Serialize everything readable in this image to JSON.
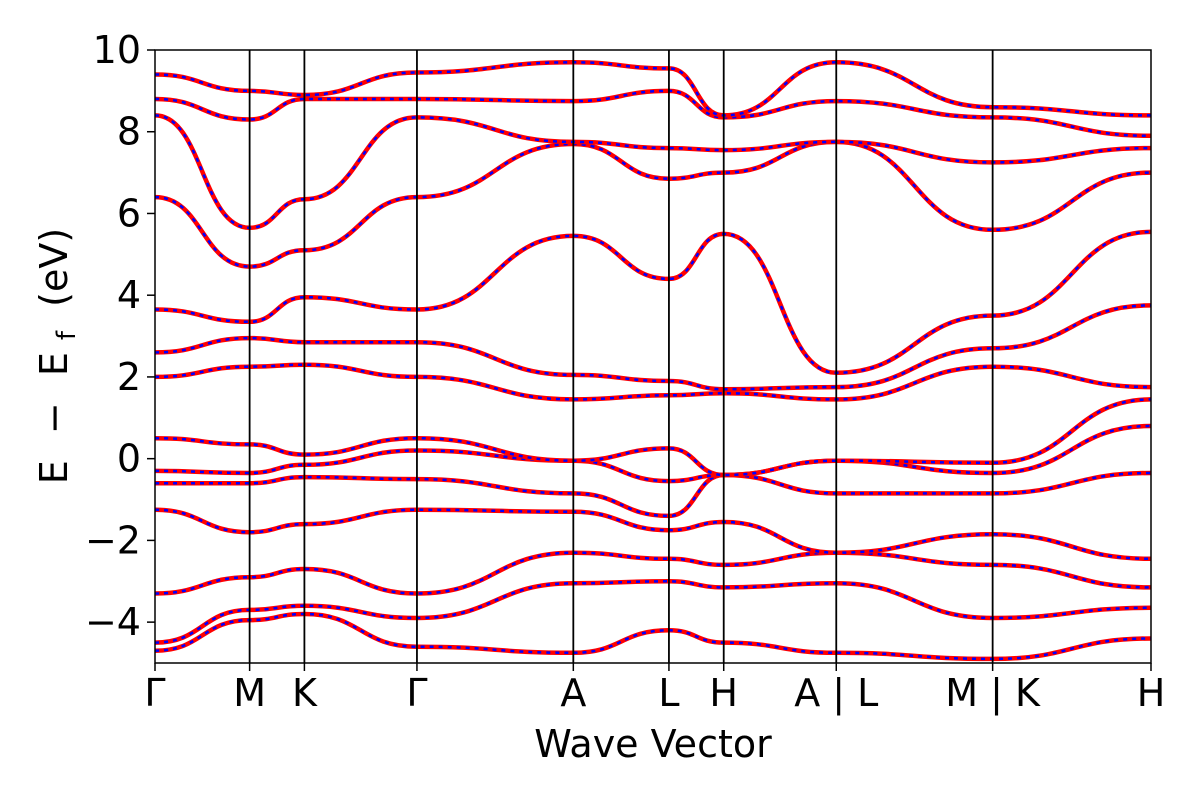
{
  "chart_data": {
    "type": "line",
    "title": "",
    "xlabel": "Wave Vector",
    "ylabel_parts": {
      "e": "E",
      "minus": "−",
      "ef_base": "E",
      "ef_sub": "f",
      "unit": "(eV)"
    },
    "ylim": [
      -5,
      10
    ],
    "yticks": [
      10,
      8,
      6,
      4,
      2,
      0,
      -2,
      -4
    ],
    "ytick_labels": [
      "10",
      "8",
      "6",
      "4",
      "2",
      "0",
      "−2",
      "−4"
    ],
    "kpath": [
      {
        "label": "Γ",
        "x": 0.0
      },
      {
        "label": "M",
        "x": 0.095
      },
      {
        "label": "K",
        "x": 0.15
      },
      {
        "label": "Γ",
        "x": 0.263
      },
      {
        "label": "A",
        "x": 0.42
      },
      {
        "label": "L",
        "x": 0.516
      },
      {
        "label": "H",
        "x": 0.571
      },
      {
        "label": "A | L",
        "x": 0.684
      },
      {
        "label": "M | K",
        "x": 0.841
      },
      {
        "label": "H",
        "x": 1.0
      }
    ],
    "series_styles": [
      {
        "role": "solid",
        "color": "#ff0000"
      },
      {
        "role": "dashed",
        "color": "#0000ff"
      }
    ],
    "bands": [
      {
        "x": [
          0.0,
          0.095,
          0.15,
          0.263,
          0.42,
          0.516,
          0.571,
          0.684,
          0.841,
          1.0
        ],
        "y": [
          -4.7,
          -3.95,
          -3.8,
          -4.6,
          -4.75,
          -4.2,
          -4.5,
          -4.75,
          -4.9,
          -4.4
        ]
      },
      {
        "x": [
          0.0,
          0.095,
          0.15,
          0.263,
          0.42,
          0.516,
          0.571,
          0.684,
          0.841,
          1.0
        ],
        "y": [
          -4.5,
          -3.7,
          -3.6,
          -3.9,
          -3.05,
          -3.0,
          -3.15,
          -3.05,
          -3.9,
          -3.65
        ]
      },
      {
        "x": [
          0.0,
          0.095,
          0.15,
          0.263,
          0.42,
          0.516,
          0.571,
          0.684,
          0.841,
          1.0
        ],
        "y": [
          -3.3,
          -2.9,
          -2.7,
          -3.3,
          -2.3,
          -2.45,
          -2.6,
          -2.3,
          -2.6,
          -3.15
        ]
      },
      {
        "x": [
          0.0,
          0.095,
          0.15,
          0.263,
          0.42,
          0.516,
          0.571,
          0.684,
          0.841,
          1.0
        ],
        "y": [
          -1.25,
          -1.8,
          -1.6,
          -1.25,
          -1.3,
          -1.75,
          -1.55,
          -2.3,
          -1.85,
          -2.45
        ]
      },
      {
        "x": [
          0.0,
          0.095,
          0.15,
          0.263,
          0.42,
          0.516,
          0.571,
          0.684,
          0.841,
          1.0
        ],
        "y": [
          -0.6,
          -0.6,
          -0.45,
          -0.5,
          -0.85,
          -1.4,
          -0.4,
          -0.85,
          -0.85,
          -0.35
        ]
      },
      {
        "x": [
          0.0,
          0.095,
          0.15,
          0.263,
          0.42,
          0.516,
          0.571,
          0.684,
          0.841,
          1.0
        ],
        "y": [
          -0.3,
          -0.35,
          -0.15,
          0.2,
          -0.05,
          -0.55,
          -0.4,
          -0.05,
          -0.35,
          0.8
        ]
      },
      {
        "x": [
          0.0,
          0.095,
          0.15,
          0.263,
          0.42,
          0.516,
          0.571,
          0.684,
          0.841,
          1.0
        ],
        "y": [
          0.5,
          0.35,
          0.1,
          0.5,
          -0.05,
          0.25,
          -0.4,
          -0.05,
          -0.1,
          1.45
        ]
      },
      {
        "x": [
          0.0,
          0.095,
          0.15,
          0.263,
          0.42,
          0.516,
          0.571,
          0.684,
          0.841,
          1.0
        ],
        "y": [
          2.0,
          2.25,
          2.3,
          2.0,
          1.45,
          1.55,
          1.6,
          1.45,
          2.25,
          1.75
        ]
      },
      {
        "x": [
          0.0,
          0.095,
          0.15,
          0.263,
          0.42,
          0.516,
          0.571,
          0.684,
          0.841,
          1.0
        ],
        "y": [
          2.6,
          2.95,
          2.85,
          2.85,
          2.05,
          1.9,
          1.7,
          1.75,
          2.7,
          3.75
        ]
      },
      {
        "x": [
          0.0,
          0.095,
          0.15,
          0.263,
          0.42,
          0.516,
          0.571,
          0.684,
          0.841,
          1.0
        ],
        "y": [
          3.65,
          3.35,
          3.95,
          3.65,
          5.45,
          4.4,
          5.5,
          2.1,
          3.5,
          5.55
        ]
      },
      {
        "x": [
          0.0,
          0.095,
          0.15,
          0.263,
          0.42,
          0.516,
          0.571,
          0.684,
          0.841,
          1.0
        ],
        "y": [
          6.4,
          4.7,
          5.1,
          6.4,
          7.7,
          6.85,
          7.0,
          7.75,
          5.6,
          7.0
        ]
      },
      {
        "x": [
          0.0,
          0.095,
          0.15,
          0.263,
          0.42,
          0.516,
          0.571,
          0.684,
          0.841,
          1.0
        ],
        "y": [
          8.4,
          5.65,
          6.35,
          8.35,
          7.75,
          7.6,
          7.55,
          7.75,
          7.25,
          7.6
        ]
      },
      {
        "x": [
          0.0,
          0.095,
          0.15,
          0.263,
          0.42,
          0.516,
          0.571,
          0.684,
          0.841,
          1.0
        ],
        "y": [
          8.8,
          8.3,
          8.8,
          8.8,
          8.75,
          9.0,
          8.35,
          8.75,
          8.35,
          7.9
        ]
      },
      {
        "x": [
          0.0,
          0.095,
          0.15,
          0.263,
          0.42,
          0.516,
          0.571,
          0.684,
          0.841,
          1.0
        ],
        "y": [
          9.4,
          9.0,
          8.9,
          9.45,
          9.7,
          9.55,
          8.4,
          9.7,
          8.6,
          8.4
        ]
      }
    ]
  }
}
